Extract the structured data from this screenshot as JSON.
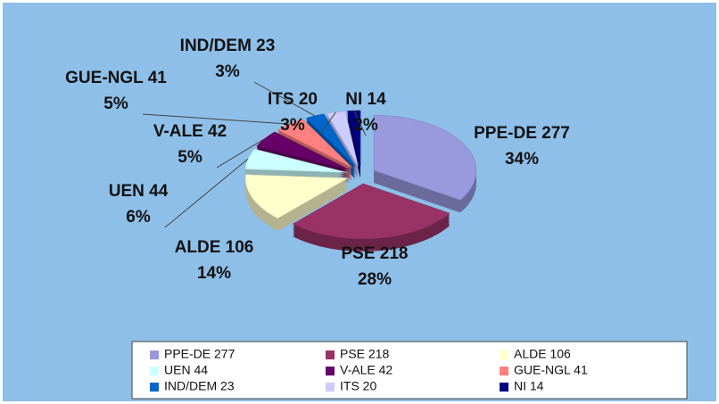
{
  "chart_data": {
    "type": "pie",
    "categories": [
      "PPE-DE 277",
      "PSE 218",
      "ALDE 106",
      "UEN 44",
      "V-ALE 42",
      "GUE-NGL 41",
      "IND/DEM 23",
      "ITS 20",
      "NI 14"
    ],
    "values": [
      34,
      28,
      14,
      6,
      5,
      5,
      3,
      3,
      2
    ],
    "value_labels": [
      "34%",
      "28%",
      "14%",
      "6%",
      "5%",
      "5%",
      "3%",
      "3%",
      "2%"
    ],
    "colors": [
      "#9999dd",
      "#993366",
      "#ffffcc",
      "#ccffff",
      "#660066",
      "#ff8080",
      "#0066cc",
      "#ccccff",
      "#000080"
    ],
    "legend": "bottom"
  }
}
